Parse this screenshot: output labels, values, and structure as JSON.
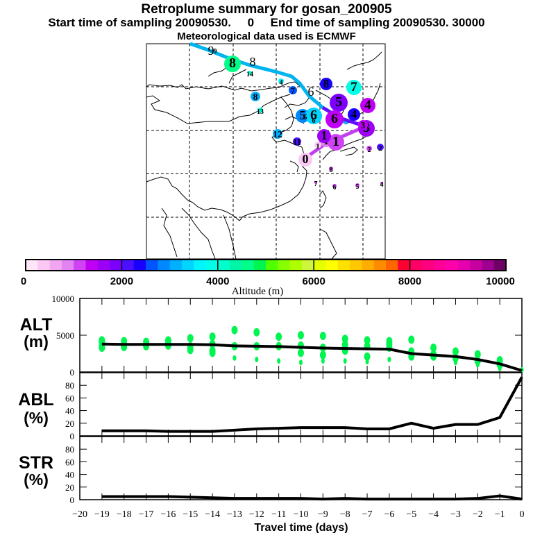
{
  "header": {
    "title": "Retroplume summary for gosan_200905",
    "subtitle": "Start time of sampling 20090530.     0     End time of sampling 20090530. 30000",
    "met_data": "Meteorological data used is ECMWF"
  },
  "colorbar": {
    "label": "Altitude (m)",
    "tick_labels": [
      "0",
      "2000",
      "4000",
      "6000",
      "8000",
      "10000"
    ],
    "range": [
      0,
      10000
    ],
    "colors": [
      "#ffe6f8",
      "#fbc8f6",
      "#f2a6f2",
      "#e283f2",
      "#d043f5",
      "#c000f5",
      "#9c00f5",
      "#7d00ff",
      "#4a10ff",
      "#1a00ff",
      "#0055ff",
      "#0088ff",
      "#00b0ff",
      "#00d4ff",
      "#00f5ff",
      "#00ffe6",
      "#00ffcc",
      "#00f5a8",
      "#00ff88",
      "#00f550",
      "#50ff00",
      "#88ff00",
      "#b0ff00",
      "#ccf53c",
      "#e6ff00",
      "#ffff00",
      "#ffe000",
      "#ffc800",
      "#ffad00",
      "#ff8c00",
      "#ff6600",
      "#ff0033",
      "#ff0066",
      "#ff0080",
      "#ff0099",
      "#ff00aa",
      "#e600b0",
      "#c800a0",
      "#a00090",
      "#6e0066"
    ]
  },
  "map": {
    "plume_labels": [
      {
        "label": "0",
        "day": 0,
        "alt": 300
      },
      {
        "label": "1",
        "day": -1,
        "alt": 900
      },
      {
        "label": "1",
        "day": -1,
        "alt": 1000
      },
      {
        "label": "1",
        "day": -1,
        "alt": 400
      },
      {
        "label": "1",
        "day": -1,
        "alt": 1500
      },
      {
        "label": "2",
        "day": -2,
        "alt": 1200
      },
      {
        "label": "2",
        "day": -2,
        "alt": 2200
      },
      {
        "label": "3",
        "day": -3,
        "alt": 1500
      },
      {
        "label": "3",
        "day": -3,
        "alt": 1300
      },
      {
        "label": "4",
        "day": -4,
        "alt": 1300
      },
      {
        "label": "4",
        "day": -4,
        "alt": 2300
      },
      {
        "label": "5",
        "day": -5,
        "alt": 1800
      },
      {
        "label": "5",
        "day": -5,
        "alt": 2900
      },
      {
        "label": "6",
        "day": -6,
        "alt": 3300
      },
      {
        "label": "6",
        "day": -6,
        "alt": 1400
      },
      {
        "label": "7",
        "day": -7,
        "alt": 2600
      },
      {
        "label": "7",
        "day": -7,
        "alt": 3800
      },
      {
        "label": "8",
        "day": -8,
        "alt": 2300
      },
      {
        "label": "8",
        "day": -8,
        "alt": 3100
      },
      {
        "label": "9",
        "day": -9,
        "alt": 3400
      },
      {
        "label": "4",
        "day": -4,
        "alt": 3600
      },
      {
        "label": "5",
        "day": -5,
        "alt": 4000
      },
      {
        "label": "6",
        "day": -6,
        "alt": 4300
      },
      {
        "label": "8",
        "day": -8,
        "alt": 4600
      },
      {
        "label": "12",
        "day": -12,
        "alt": 3200
      },
      {
        "label": "13",
        "day": -13,
        "alt": 3900
      },
      {
        "label": "14",
        "day": -14,
        "alt": 4000
      },
      {
        "label": "11",
        "day": -11,
        "alt": 2100
      },
      {
        "label": "8",
        "day": -8,
        "alt": 1200
      },
      {
        "label": "7",
        "day": -7,
        "alt": 1100
      },
      {
        "label": "6",
        "day": -6,
        "alt": 1200
      },
      {
        "label": "5",
        "day": -5,
        "alt": 1200
      },
      {
        "label": "4",
        "day": -4,
        "alt": 1200
      }
    ]
  },
  "panels": {
    "alt": {
      "label_line1": "ALT",
      "label_line2": "(m)",
      "ticks": [
        "0",
        "5000",
        "10000"
      ]
    },
    "abl": {
      "label_line1": "ABL",
      "label_line2": "(%)",
      "ticks": [
        "0",
        "20",
        "40",
        "60",
        "80"
      ]
    },
    "str": {
      "label_line1": "STR",
      "label_line2": "(%)",
      "ticks": [
        "0",
        "20",
        "40",
        "60",
        "80"
      ]
    }
  },
  "chart_data": [
    {
      "type": "scatter",
      "title": "ALT (m)",
      "xlabel": "Travel time (days)",
      "ylabel": "ALT (m)",
      "xlim": [
        -20,
        0
      ],
      "ylim": [
        0,
        10000
      ],
      "mean_line": {
        "x": [
          -19,
          -18,
          -17,
          -16,
          -15,
          -14,
          -13,
          -12,
          -11,
          -10,
          -9,
          -8,
          -7,
          -6,
          -5,
          -4,
          -3,
          -2,
          -1,
          0
        ],
        "y": [
          3800,
          3750,
          3750,
          3750,
          3750,
          3700,
          3550,
          3500,
          3450,
          3350,
          3250,
          3200,
          3150,
          3100,
          2500,
          2300,
          2100,
          1700,
          1100,
          200
        ]
      },
      "points": [
        {
          "x": -19,
          "ys": [
            4000,
            3600,
            3300,
            4300
          ]
        },
        {
          "x": -18,
          "ys": [
            3600,
            4200,
            3400
          ]
        },
        {
          "x": -17,
          "ys": [
            3800,
            3500,
            4100
          ]
        },
        {
          "x": -16,
          "ys": [
            3600,
            4300,
            3900
          ]
        },
        {
          "x": -15,
          "ys": [
            4600,
            3500,
            3000
          ]
        },
        {
          "x": -14,
          "ys": [
            4800,
            3800,
            2900,
            2600
          ]
        },
        {
          "x": -13,
          "ys": [
            5700,
            3500,
            1900
          ]
        },
        {
          "x": -12,
          "ys": [
            5400,
            3500,
            1700
          ]
        },
        {
          "x": -11,
          "ys": [
            4800,
            3500,
            1500
          ]
        },
        {
          "x": -10,
          "ys": [
            5000,
            3600,
            2600,
            1300
          ]
        },
        {
          "x": -9,
          "ys": [
            4900,
            3300,
            2300,
            1500
          ]
        },
        {
          "x": -8,
          "ys": [
            4500,
            3700,
            2900,
            1500
          ]
        },
        {
          "x": -7,
          "ys": [
            4300,
            3500,
            2100,
            1400
          ]
        },
        {
          "x": -6,
          "ys": [
            4200,
            3800,
            3300,
            1700
          ]
        },
        {
          "x": -5,
          "ys": [
            4400,
            2800,
            2100
          ]
        },
        {
          "x": -4,
          "ys": [
            3300,
            2400,
            2100
          ]
        },
        {
          "x": -3,
          "ys": [
            2800,
            1900,
            1300
          ]
        },
        {
          "x": -2,
          "ys": [
            2400,
            1500,
            1000
          ]
        },
        {
          "x": -1,
          "ys": [
            1600,
            1000,
            500
          ]
        },
        {
          "x": 0,
          "ys": [
            300
          ]
        }
      ],
      "point_color": "#00f550"
    },
    {
      "type": "line",
      "title": "ABL (%)",
      "xlabel": "Travel time (days)",
      "ylabel": "ABL (%)",
      "xlim": [
        -20,
        0
      ],
      "ylim": [
        0,
        100
      ],
      "x": [
        -19,
        -18,
        -17,
        -16,
        -15,
        -14,
        -13,
        -12,
        -11,
        -10,
        -9,
        -8,
        -7,
        -6,
        -5,
        -4,
        -3,
        -2,
        -1,
        0
      ],
      "y": [
        8,
        8,
        8,
        7,
        7,
        7,
        9,
        11,
        12,
        13,
        13,
        13,
        11,
        11,
        20,
        12,
        18,
        18,
        29,
        93
      ]
    },
    {
      "type": "line",
      "title": "STR (%)",
      "xlabel": "Travel time (days)",
      "ylabel": "STR (%)",
      "xlim": [
        -20,
        0
      ],
      "ylim": [
        0,
        100
      ],
      "x": [
        -19,
        -18,
        -17,
        -16,
        -15,
        -14,
        -13,
        -12,
        -11,
        -10,
        -9,
        -8,
        -7,
        -6,
        -5,
        -4,
        -3,
        -2,
        -1,
        0
      ],
      "y": [
        5,
        5,
        5,
        5,
        4,
        3,
        2,
        2,
        2,
        2,
        1,
        2,
        1,
        1,
        1,
        1,
        1,
        2,
        6,
        1
      ]
    }
  ],
  "xaxis": {
    "label": "Travel time (days)",
    "ticks": [
      "-20",
      "-19",
      "-18",
      "-17",
      "-16",
      "-15",
      "-14",
      "-13",
      "-12",
      "-11",
      "-10",
      "-9",
      "-8",
      "-7",
      "-6",
      "-5",
      "-4",
      "-3",
      "-2",
      "-1",
      "0"
    ]
  }
}
